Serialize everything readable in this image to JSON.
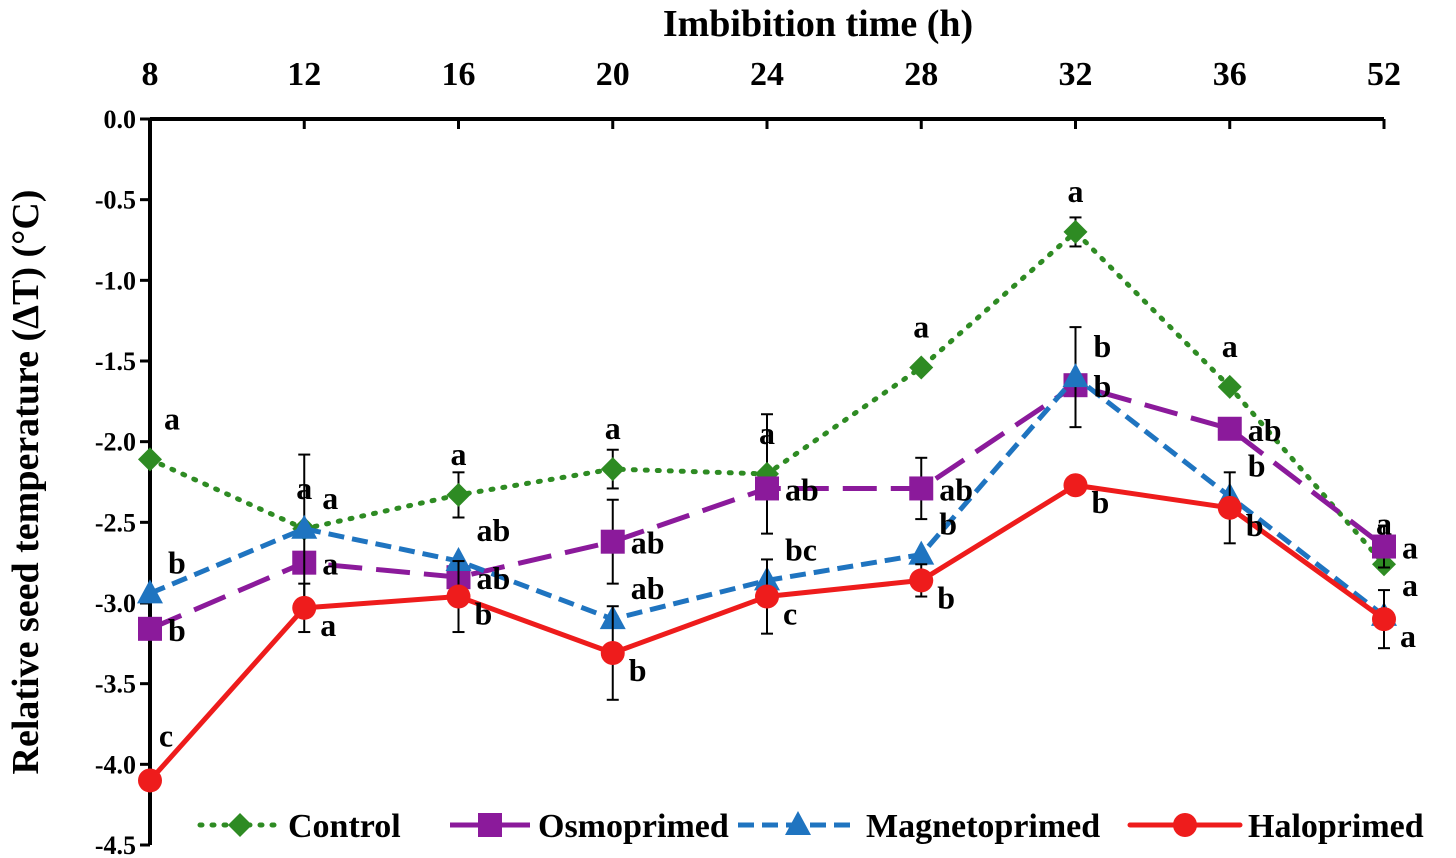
{
  "chart_data": {
    "type": "line",
    "title": "",
    "xlabel": "Imbibition time (h)",
    "ylabel": "Relative seed temperature (ΔT) (°C)",
    "x": [
      "8",
      "12",
      "16",
      "20",
      "24",
      "28",
      "32",
      "36",
      "52"
    ],
    "ylim": [
      -4.5,
      0.0
    ],
    "yticks": [
      "0.0",
      "-0.5",
      "-1.0",
      "-1.5",
      "-2.0",
      "-2.5",
      "-3.0",
      "-3.5",
      "-4.0",
      "-4.5"
    ],
    "legend_position": "bottom",
    "series": [
      {
        "name": "Control",
        "color": "#2e8b23",
        "marker": "diamond",
        "dash": "dotted",
        "values": [
          -2.11,
          -2.54,
          -2.33,
          -2.17,
          -2.2,
          -1.54,
          -0.7,
          -1.66,
          -2.76
        ],
        "errors": [
          0.0,
          0.0,
          0.14,
          0.12,
          0.37,
          0.0,
          0.09,
          0.0,
          0.0
        ],
        "labels": [
          "a",
          "a",
          "a",
          "a",
          "a",
          "a",
          "a",
          "a",
          "a"
        ]
      },
      {
        "name": "Osmoprimed",
        "color": "#8b1a9b",
        "marker": "square",
        "dash": "longdash",
        "values": [
          -3.16,
          -2.75,
          -2.84,
          -2.62,
          -2.29,
          -2.29,
          -1.65,
          -1.92,
          -2.65
        ],
        "errors": [
          0.0,
          0.0,
          0.0,
          0.26,
          0.0,
          0.19,
          0.0,
          0.0,
          0.13
        ],
        "labels": [
          "b",
          "a",
          "ab",
          "ab",
          "ab",
          "ab",
          "b",
          "ab",
          "a"
        ]
      },
      {
        "name": "Magnetoprimed",
        "color": "#1f74c0",
        "marker": "triangle",
        "dash": "dash",
        "values": [
          -2.94,
          -2.54,
          -2.74,
          -3.1,
          -2.86,
          -2.7,
          -1.6,
          -2.34,
          -3.08
        ],
        "errors": [
          0.0,
          0.46,
          0.0,
          0.0,
          0.0,
          0.0,
          0.31,
          0.0,
          0.0
        ],
        "labels": [
          "b",
          "a",
          "ab",
          "ab",
          "bc",
          "b",
          "b",
          "b",
          "a"
        ]
      },
      {
        "name": "Haloprimed",
        "color": "#ee1c1c",
        "marker": "circle",
        "dash": "solid",
        "values": [
          -4.1,
          -3.03,
          -2.96,
          -3.31,
          -2.96,
          -2.86,
          -2.27,
          -2.41,
          -3.1
        ],
        "errors": [
          0.0,
          0.15,
          0.22,
          0.29,
          0.23,
          0.1,
          0.0,
          0.22,
          0.18
        ],
        "labels": [
          "c",
          "a",
          "b",
          "b",
          "c",
          "b",
          "b",
          "b",
          "a"
        ]
      }
    ]
  }
}
